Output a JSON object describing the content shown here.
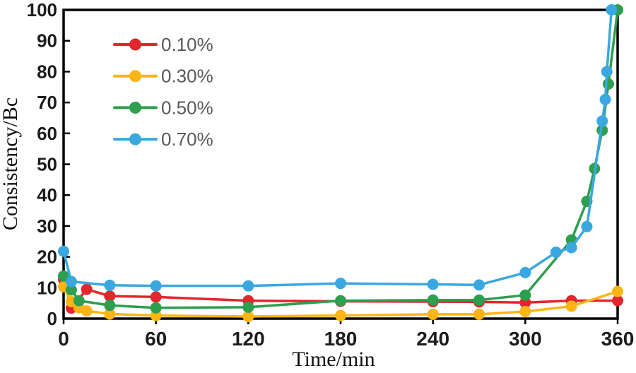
{
  "chart_data": {
    "type": "line",
    "title": "",
    "xlabel": "Time/min",
    "ylabel": "Consistency/Bc",
    "xlim": [
      0,
      360
    ],
    "ylim": [
      0,
      100
    ],
    "x_tick_step": 60,
    "y_tick_step": 10,
    "grid": false,
    "legend_position": "upper-left-inside",
    "marker": "circle",
    "axis_color": "#000000",
    "tick_label_color": "#1c1c1c",
    "legend_text_color": "#595959",
    "series": [
      {
        "name": "0.10%",
        "color": "#e2262b",
        "x": [
          0,
          5,
          15,
          30,
          60,
          120,
          180,
          240,
          270,
          300,
          330,
          360
        ],
        "y": [
          12.7,
          3.4,
          9.5,
          7.3,
          7.0,
          5.8,
          5.6,
          5.5,
          5.4,
          5.2,
          5.8,
          5.8
        ]
      },
      {
        "name": "0.30%",
        "color": "#fcb514",
        "x": [
          0,
          5,
          10,
          15,
          30,
          60,
          120,
          180,
          240,
          270,
          300,
          330,
          360
        ],
        "y": [
          10.3,
          5.5,
          3.5,
          2.5,
          1.5,
          1.0,
          0.7,
          1.0,
          1.4,
          1.4,
          2.3,
          4.0,
          8.8
        ]
      },
      {
        "name": "0.50%",
        "color": "#2e9e4f",
        "x": [
          0,
          5,
          10,
          30,
          60,
          120,
          180,
          240,
          270,
          300,
          330,
          340,
          345,
          350,
          354,
          360
        ],
        "y": [
          13.8,
          9.3,
          5.8,
          4.3,
          3.5,
          3.7,
          5.8,
          6.0,
          6.0,
          7.6,
          25.5,
          38.0,
          48.6,
          61.0,
          76.0,
          100.0
        ]
      },
      {
        "name": "0.70%",
        "color": "#39a8e0",
        "x": [
          0,
          5,
          30,
          60,
          120,
          180,
          240,
          270,
          300,
          320,
          330,
          340,
          350,
          352,
          353,
          356
        ],
        "y": [
          21.8,
          12.0,
          10.8,
          10.6,
          10.6,
          11.4,
          11.1,
          10.9,
          14.9,
          21.5,
          23.0,
          29.8,
          64.0,
          71.0,
          80.0,
          100.0
        ]
      }
    ]
  }
}
